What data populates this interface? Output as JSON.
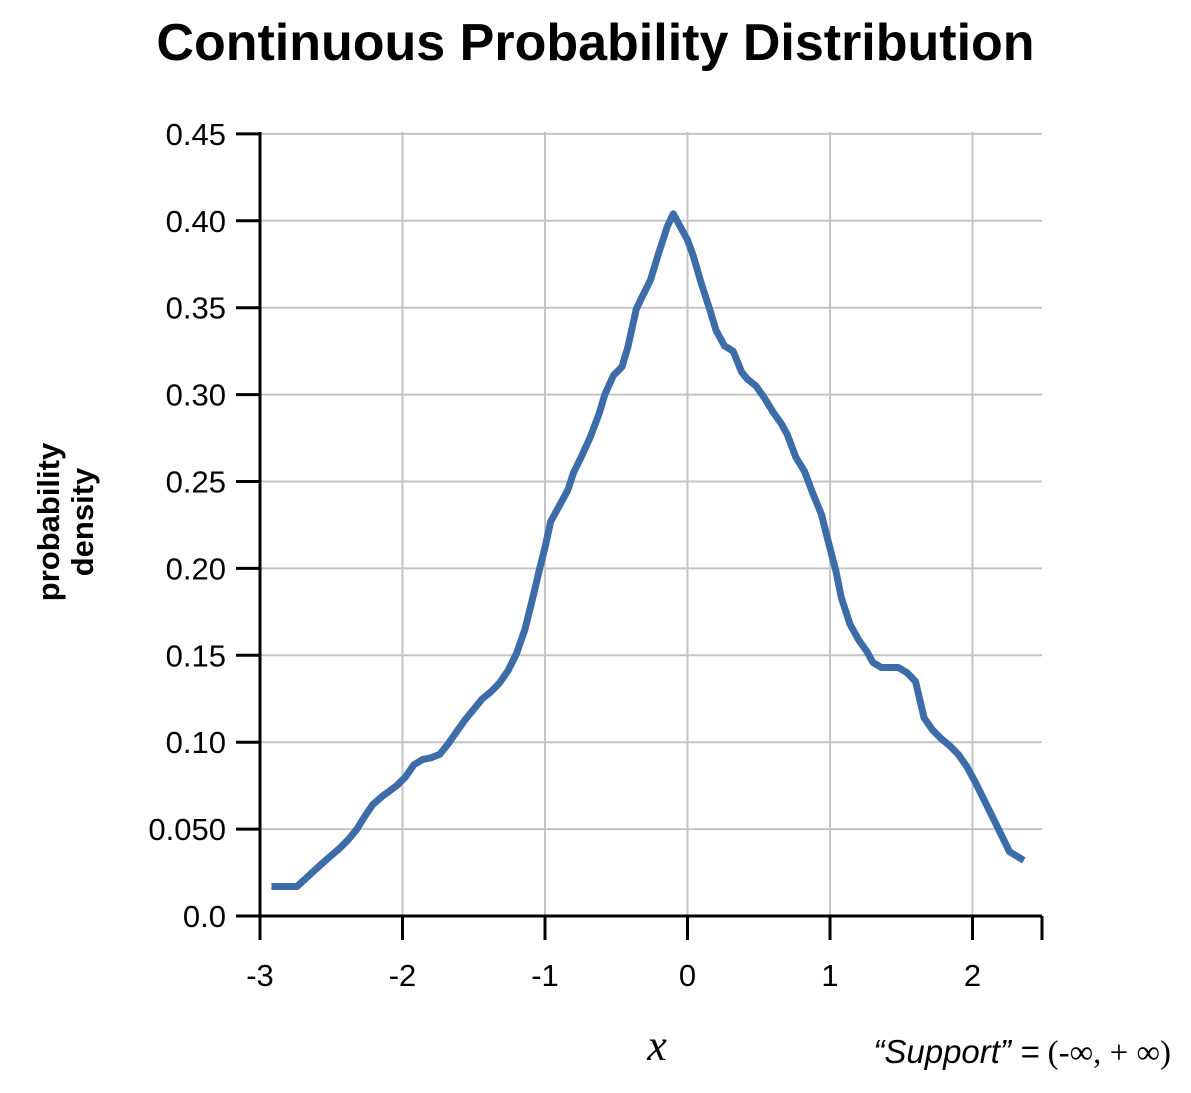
{
  "chart_data": {
    "type": "line",
    "title": "Continuous Probability Distribution",
    "xlabel": "x",
    "ylabel": [
      "probability",
      "density"
    ],
    "xlim": [
      -3,
      2.4
    ],
    "ylim": [
      0,
      0.45
    ],
    "grid": true,
    "x_ticks": [
      -3,
      -2,
      -1,
      0,
      1,
      2
    ],
    "x_tick_labels": [
      "-3",
      "-2",
      "-1",
      "0",
      "1",
      "2"
    ],
    "y_ticks": [
      0,
      0.05,
      0.1,
      0.15,
      0.2,
      0.25,
      0.3,
      0.35,
      0.4,
      0.45
    ],
    "y_tick_labels": [
      "0.0",
      "0.050",
      "0.10",
      "0.15",
      "0.20",
      "0.25",
      "0.30",
      "0.35",
      "0.40",
      "0.45"
    ],
    "series": [
      {
        "color": "#3d6da8",
        "x": [
          -2.92,
          -2.78,
          -2.74,
          -2.62,
          -2.54,
          -2.44,
          -2.38,
          -2.32,
          -2.26,
          -2.21,
          -2.14,
          -2.09,
          -2.04,
          -1.98,
          -1.92,
          -1.86,
          -1.8,
          -1.74,
          -1.68,
          -1.62,
          -1.56,
          -1.5,
          -1.44,
          -1.38,
          -1.32,
          -1.26,
          -1.2,
          -1.14,
          -1.08,
          -1.04,
          -1.0,
          -0.96,
          -0.9,
          -0.84,
          -0.8,
          -0.74,
          -0.68,
          -0.62,
          -0.58,
          -0.52,
          -0.46,
          -0.42,
          -0.36,
          -0.32,
          -0.26,
          -0.2,
          -0.14,
          -0.1,
          -0.04,
          0.0,
          0.04,
          0.1,
          0.16,
          0.2,
          0.26,
          0.32,
          0.38,
          0.42,
          0.48,
          0.54,
          0.6,
          0.66,
          0.7,
          0.76,
          0.82,
          0.88,
          0.94,
          0.98,
          1.04,
          1.08,
          1.14,
          1.2,
          1.26,
          1.3,
          1.36,
          1.42,
          1.48,
          1.54,
          1.6,
          1.66,
          1.72,
          1.78,
          1.84,
          1.9,
          1.96,
          2.02,
          2.08,
          2.14,
          2.2,
          2.26,
          2.32,
          2.36
        ],
        "y": [
          0.017,
          0.017,
          0.017,
          0.026,
          0.032,
          0.039,
          0.044,
          0.05,
          0.058,
          0.064,
          0.069,
          0.072,
          0.075,
          0.08,
          0.087,
          0.09,
          0.091,
          0.093,
          0.099,
          0.106,
          0.113,
          0.119,
          0.125,
          0.129,
          0.134,
          0.141,
          0.151,
          0.165,
          0.185,
          0.199,
          0.212,
          0.227,
          0.236,
          0.245,
          0.255,
          0.265,
          0.276,
          0.289,
          0.3,
          0.311,
          0.316,
          0.327,
          0.349,
          0.356,
          0.366,
          0.382,
          0.397,
          0.404,
          0.395,
          0.389,
          0.38,
          0.363,
          0.348,
          0.337,
          0.328,
          0.325,
          0.313,
          0.309,
          0.305,
          0.298,
          0.29,
          0.283,
          0.277,
          0.264,
          0.256,
          0.243,
          0.231,
          0.218,
          0.199,
          0.183,
          0.168,
          0.159,
          0.152,
          0.146,
          0.143,
          0.143,
          0.143,
          0.14,
          0.135,
          0.114,
          0.107,
          0.102,
          0.098,
          0.093,
          0.086,
          0.077,
          0.067,
          0.057,
          0.047,
          0.037,
          0.034,
          0.032
        ]
      }
    ]
  },
  "support_note": {
    "lhs": "“Support” =",
    "rhs": " (-∞, + ∞)"
  }
}
